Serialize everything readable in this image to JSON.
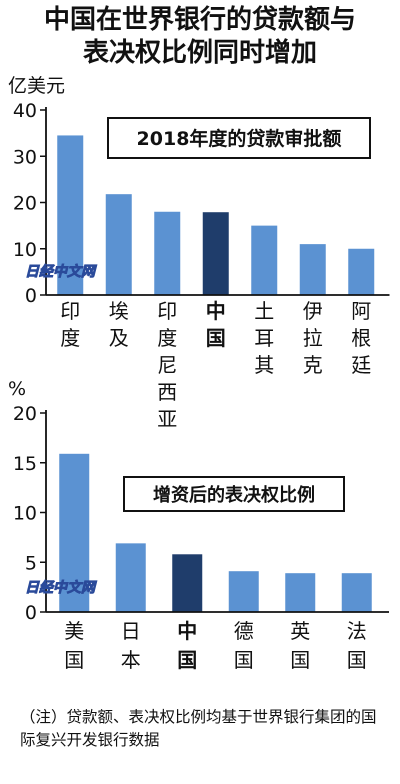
{
  "title_lines": [
    "中国在世界银行的贷款额与",
    "表决权比例同时增加"
  ],
  "watermark": "日经中文网",
  "note": "（注）贷款额、表决权比例均基于世界银行集团的国际复兴开发银行数据",
  "colors": {
    "bar": "#5b92d2",
    "highlight": "#1f3d6b",
    "axis": "#111111",
    "box_border": "#111111"
  },
  "chart_data": [
    {
      "type": "bar",
      "title": "2018年度的贷款审批额",
      "unit_label": "亿美元",
      "xlabel": "",
      "ylabel": "",
      "ylim": [
        0,
        40
      ],
      "yticks": [
        0,
        10,
        20,
        30,
        40
      ],
      "categories": [
        "印度",
        "埃及",
        "印度尼西亚",
        "中国",
        "土耳其",
        "伊拉克",
        "阿根廷"
      ],
      "values": [
        34.5,
        21.8,
        18.0,
        17.9,
        15.0,
        11.0,
        10.0
      ],
      "highlight": "中国",
      "grid": false
    },
    {
      "type": "bar",
      "title": "增资后的表决权比例",
      "unit_label": "%",
      "xlabel": "",
      "ylabel": "",
      "ylim": [
        0,
        20
      ],
      "yticks": [
        0,
        5,
        10,
        15,
        20
      ],
      "categories": [
        "美国",
        "日本",
        "中国",
        "德国",
        "英国",
        "法国"
      ],
      "values": [
        15.9,
        6.9,
        5.8,
        4.1,
        3.9,
        3.9
      ],
      "highlight": "中国",
      "grid": false
    }
  ]
}
